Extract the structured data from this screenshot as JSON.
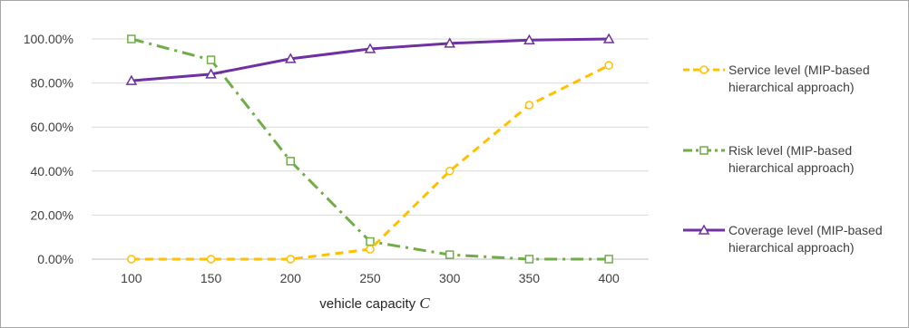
{
  "chart_data": {
    "type": "line",
    "categories": [
      "100",
      "150",
      "200",
      "250",
      "300",
      "350",
      "400"
    ],
    "xlabel": "vehicle capacity",
    "xlabel_symbol": "C",
    "ylim": [
      0,
      100
    ],
    "yticks": [
      "0.00%",
      "20.00%",
      "40.00%",
      "60.00%",
      "80.00%",
      "100.00%"
    ],
    "grid": true,
    "legend_position": "right",
    "series": [
      {
        "name": "Service level  (MIP-based hierarchical approach)",
        "legend_lines": [
          "Service level  (MIP-based",
          "hierarchical approach)"
        ],
        "values": [
          0,
          0,
          0,
          4.5,
          40,
          70,
          88
        ],
        "color": "#ffc000",
        "dash": "dashed",
        "marker": "circle"
      },
      {
        "name": "Risk level (MIP-based hierarchical approach)",
        "legend_lines": [
          "Risk level (MIP-based",
          "hierarchical approach)"
        ],
        "values": [
          100,
          90.5,
          44.5,
          8,
          2,
          0,
          0
        ],
        "color": "#70ad47",
        "dash": "dash-dot",
        "marker": "square"
      },
      {
        "name": "Coverage level (MIP-based hierarchical approach)",
        "legend_lines": [
          "Coverage level (MIP-based",
          "hierarchical approach)"
        ],
        "values": [
          81,
          84,
          91,
          95.5,
          98,
          99.5,
          100
        ],
        "color": "#7030a0",
        "dash": "solid",
        "marker": "triangle"
      }
    ]
  }
}
